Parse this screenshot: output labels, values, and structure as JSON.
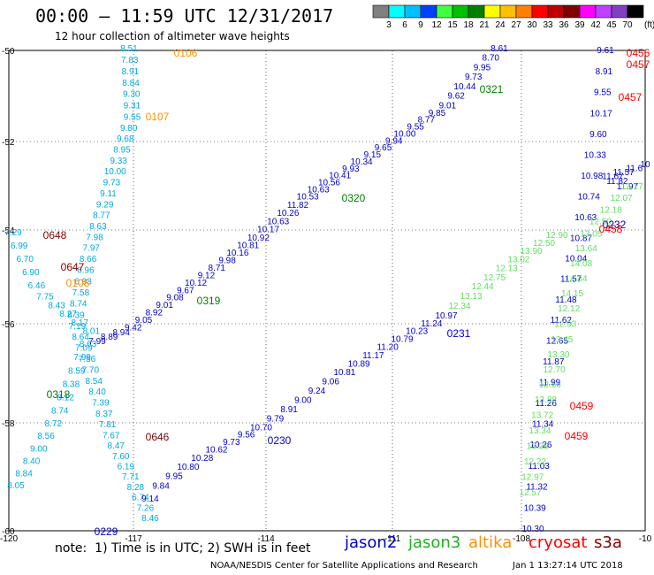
{
  "header": {
    "title": "00:00 — 11:59 UTC 12/31/2017",
    "subtitle": "12 hour collection of altimeter wave heights"
  },
  "legend": {
    "unit_label": "(ft)",
    "bins": [
      {
        "label": "3",
        "color": "#808080"
      },
      {
        "label": "6",
        "color": "#00ffff"
      },
      {
        "label": "9",
        "color": "#00c0ff"
      },
      {
        "label": "12",
        "color": "#0040ff"
      },
      {
        "label": "15",
        "color": "#40ff40"
      },
      {
        "label": "18",
        "color": "#00c000"
      },
      {
        "label": "21",
        "color": "#008000"
      },
      {
        "label": "24",
        "color": "#ffff00"
      },
      {
        "label": "27",
        "color": "#ffc000"
      },
      {
        "label": "30",
        "color": "#ff8000"
      },
      {
        "label": "33",
        "color": "#ff0000"
      },
      {
        "label": "36",
        "color": "#c00000"
      },
      {
        "label": "39",
        "color": "#800000"
      },
      {
        "label": "42",
        "color": "#ff00ff"
      },
      {
        "label": "45",
        "color": "#c040ff"
      },
      {
        "label": "70",
        "color": "#8040c0"
      },
      {
        "label": "",
        "color": "#000000"
      }
    ]
  },
  "map": {
    "lat_ticks": [
      "-50",
      "-52",
      "-54",
      "-56",
      "-58",
      "-60"
    ],
    "lon_ticks": [
      "-120",
      "-117",
      "-114",
      "-111",
      "-108",
      "-10"
    ]
  },
  "satellites": [
    {
      "name": "jason2",
      "color": "#0000c8"
    },
    {
      "name": "jason3",
      "color": "#20b020"
    },
    {
      "name": "altika",
      "color": "#ff9000"
    },
    {
      "name": "cryosat",
      "color": "#ff0000"
    },
    {
      "name": "s3a",
      "color": "#800000"
    }
  ],
  "footer": {
    "note": "note:  1) Time is in UTC; 2) SWH is in feet",
    "credit": "NOAA/NESDIS Center for Satellite Applications and Research",
    "timestamp": "Jan  1 13:27:14 UTC 2018"
  },
  "tracks": [
    {
      "color": "#00a8e0",
      "values": [
        "8.51",
        "7.83",
        "8.91",
        "8.84",
        "9.30",
        "9.31",
        "9.55",
        "9.80",
        "9.68",
        "8.95",
        "9.33",
        "10.00",
        "9.73",
        "9.11",
        "9.29",
        "8.77",
        "8.63",
        "7.98",
        "7.97",
        "8.66",
        "6.96",
        "6.93",
        "7.58",
        "8.74",
        "8.39",
        "7.19",
        "8.64",
        "7.09",
        "7.56",
        "7.70",
        "8.54",
        "8.40",
        "7.39",
        "8.37",
        "7.81",
        "7.67",
        "8.47",
        "7.60",
        "6.19",
        "7.71",
        "8.28",
        "6.74",
        "7.26",
        "8.46"
      ]
    },
    {
      "color": "#00a8e0",
      "values": [
        "7.29",
        "6.99",
        "6.70",
        "6.90",
        "6.46",
        "7.75",
        "8.43",
        "8.27",
        "8.17",
        "8.01",
        "8.63",
        "7.99",
        "8.59",
        "8.38",
        "8.12",
        "8.74",
        "8.72",
        "8.56",
        "9.00",
        "8.40",
        "8.84",
        "8.05"
      ]
    },
    {
      "color": "#0000c8",
      "values": [
        "8.61",
        "8.70",
        "9.95",
        "9.73",
        "10.44",
        "9.62",
        "9.01",
        "9.85",
        "8.77",
        "9.55",
        "10.00",
        "9.94",
        "9.65",
        "9.15",
        "10.34",
        "9.93",
        "10.41",
        "10.56",
        "10.63",
        "10.53",
        "11.82",
        "10.26",
        "10.63",
        "10.17",
        "10.92",
        "10.81",
        "10.16",
        "9.98",
        "8.71",
        "9.12",
        "10.12",
        "9.67",
        "9.08",
        "9.01",
        "8.92",
        "9.05",
        "9.42",
        "8.94",
        "8.89",
        "7.99"
      ]
    },
    {
      "color": "#0000c8",
      "values": [
        "10.97",
        "11.24",
        "10.23",
        "10.79",
        "11.20",
        "11.17",
        "10.89",
        "10.81",
        "9.06",
        "9.24",
        "9.00",
        "8.91",
        "9.79",
        "10.70",
        "9.56",
        "9.73",
        "10.62",
        "10.28",
        "10.80",
        "9.95",
        "9.84",
        "9.14"
      ]
    },
    {
      "color": "#0000c8",
      "values": [
        "9.61",
        "8.91",
        "9.55",
        "10.17",
        "9.60",
        "10.33",
        "10.98",
        "10.74",
        "10.63",
        "10.87",
        "10.04",
        "11.57",
        "11.48",
        "11.62",
        "12.65",
        "11.87",
        "11.99",
        "11.26",
        "11.34",
        "10.26",
        "11.03",
        "11.32",
        "10.39",
        "10.30"
      ]
    },
    {
      "color": "#0000c8",
      "values": [
        "11.97",
        "11.82",
        "11.67",
        "11.57",
        "11.6",
        "10"
      ]
    },
    {
      "color": "#60e060",
      "values": [
        "12.17",
        "12.07",
        "12.18",
        "12.50",
        "13.05",
        "13.64",
        "14.08",
        "14.44",
        "14.15",
        "12.12",
        "12.93",
        "13.45",
        "13.30",
        "12.70",
        "12.56",
        "13.88",
        "13.72",
        "13.34",
        "13.28",
        "12.22",
        "12.97",
        "12.57"
      ]
    },
    {
      "color": "#60e060",
      "values": [
        "12.90",
        "12.50",
        "13.90",
        "13.02",
        "12.13",
        "12.75",
        "12.44",
        "13.13",
        "12.34"
      ]
    }
  ],
  "pass_ids": [
    {
      "text": "0106",
      "color": "#ff9000"
    },
    {
      "text": "0107",
      "color": "#ff9000"
    },
    {
      "text": "0108",
      "color": "#ff9000"
    },
    {
      "text": "0648",
      "color": "#800000"
    },
    {
      "text": "0647",
      "color": "#800000"
    },
    {
      "text": "0646",
      "color": "#800000"
    },
    {
      "text": "0318",
      "color": "#008000"
    },
    {
      "text": "0319",
      "color": "#008000"
    },
    {
      "text": "0320",
      "color": "#008000"
    },
    {
      "text": "0321",
      "color": "#008000"
    },
    {
      "text": "0229",
      "color": "#0000c8"
    },
    {
      "text": "0230",
      "color": "#0000c8"
    },
    {
      "text": "0231",
      "color": "#0000c8"
    },
    {
      "text": "0232",
      "color": "#0000c8"
    },
    {
      "text": "0456",
      "color": "#ff0000"
    },
    {
      "text": "0457",
      "color": "#ff0000"
    },
    {
      "text": "0457",
      "color": "#ff0000"
    },
    {
      "text": "0458",
      "color": "#ff0000"
    },
    {
      "text": "0459",
      "color": "#ff0000"
    },
    {
      "text": "0459",
      "color": "#ff0000"
    }
  ]
}
